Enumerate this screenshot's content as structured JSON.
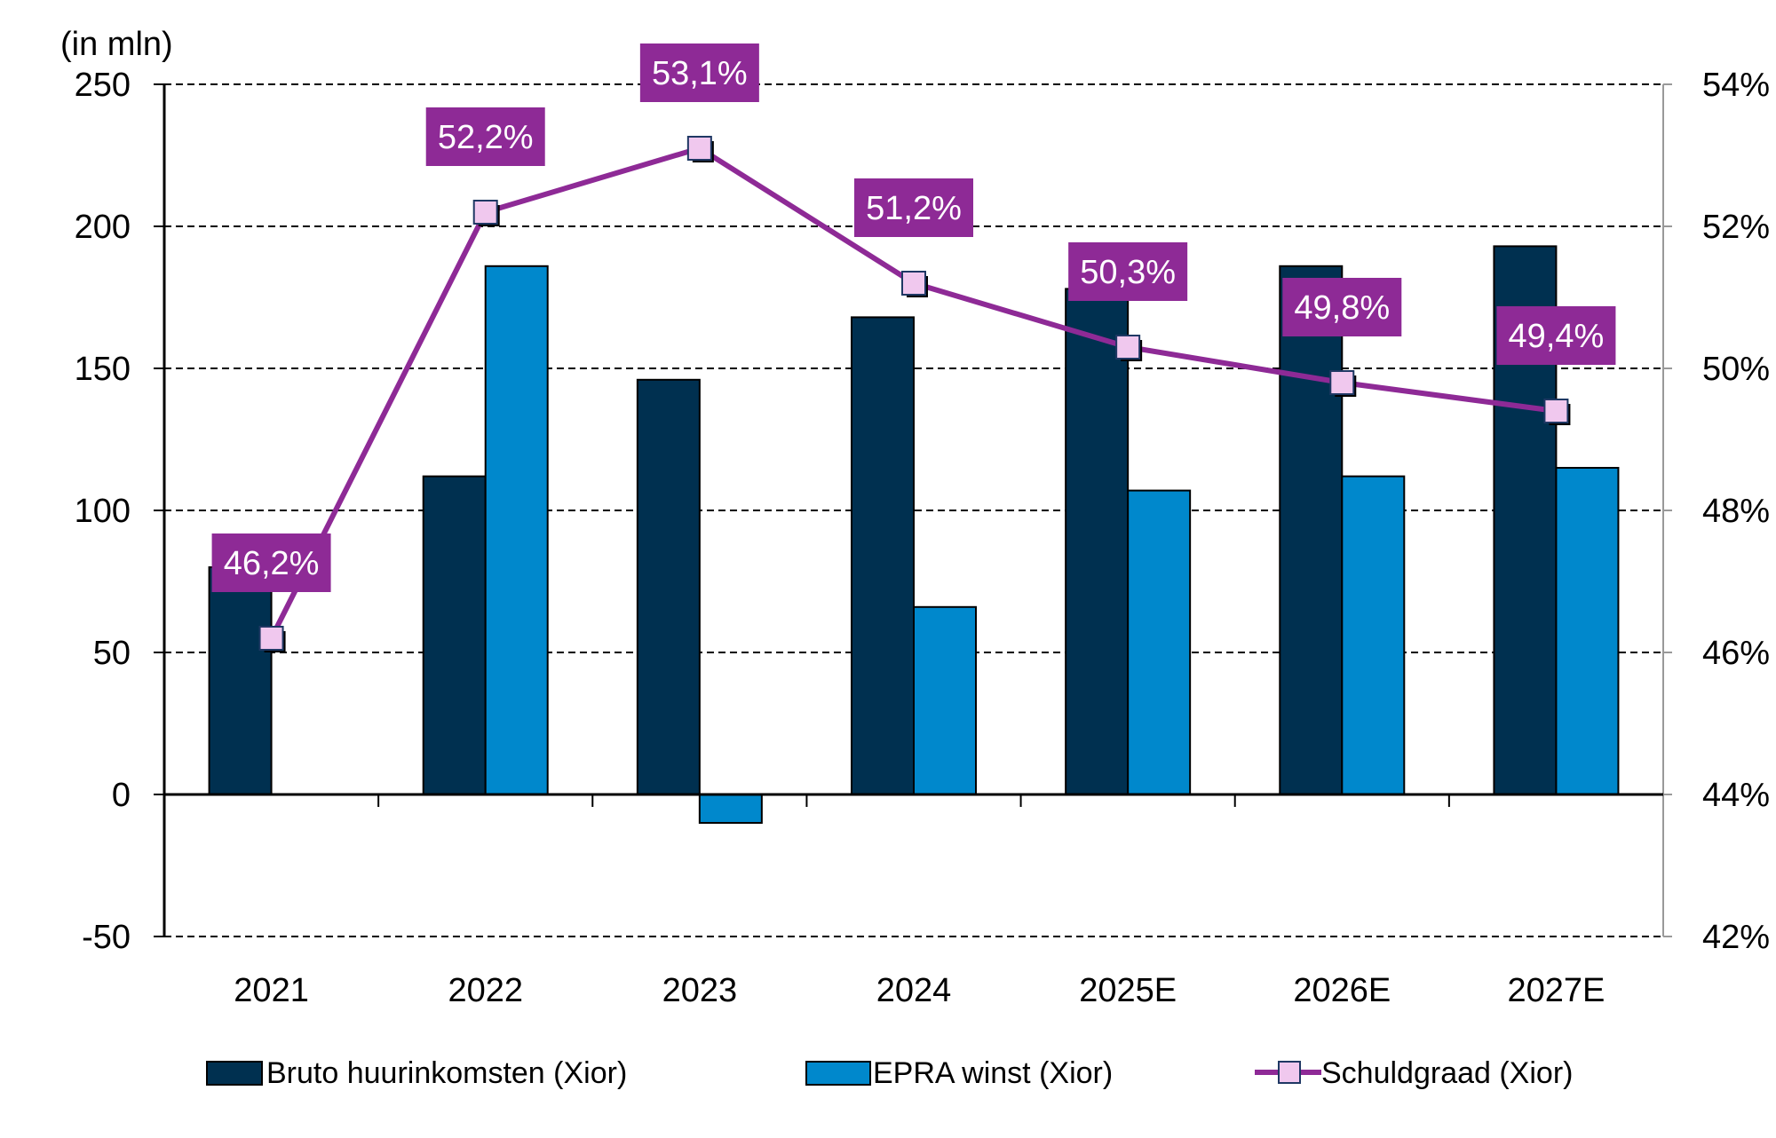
{
  "chart_data": {
    "type": "bar",
    "unit_label": "(in mln)",
    "categories": [
      "2021",
      "2022",
      "2023",
      "2024",
      "2025E",
      "2026E",
      "2027E"
    ],
    "ylim": [
      -50,
      250
    ],
    "yticks": [
      "250",
      "200",
      "150",
      "100",
      "50",
      "0",
      "-50"
    ],
    "ytick_values": [
      250,
      200,
      150,
      100,
      50,
      0,
      -50
    ],
    "y2lim": [
      42,
      54
    ],
    "y2ticks": [
      "54%",
      "52%",
      "50%",
      "48%",
      "46%",
      "44%",
      "42%"
    ],
    "y2tick_values": [
      54,
      52,
      50,
      48,
      46,
      44,
      42
    ],
    "grid": true,
    "legend_position": "bottom",
    "series": [
      {
        "name": "Bruto huurinkomsten (Xior)",
        "type": "bar",
        "axis": "left",
        "color": "#003050",
        "values": [
          80,
          112,
          146,
          168,
          178,
          186,
          193
        ]
      },
      {
        "name": "EPRA winst (Xior)",
        "type": "bar",
        "axis": "left",
        "color": "#0088cc",
        "values": [
          0,
          186,
          -10,
          66,
          107,
          112,
          115
        ]
      },
      {
        "name": "Schuldgraad (Xior)",
        "type": "line",
        "axis": "right",
        "color": "#8e2a96",
        "marker_color": "#f0c8ee",
        "values": [
          46.2,
          52.2,
          53.1,
          51.2,
          50.3,
          49.8,
          49.4
        ],
        "labels": [
          "46,2%",
          "52,2%",
          "53,1%",
          "51,2%",
          "50,3%",
          "49,8%",
          "49,4%"
        ]
      }
    ]
  }
}
